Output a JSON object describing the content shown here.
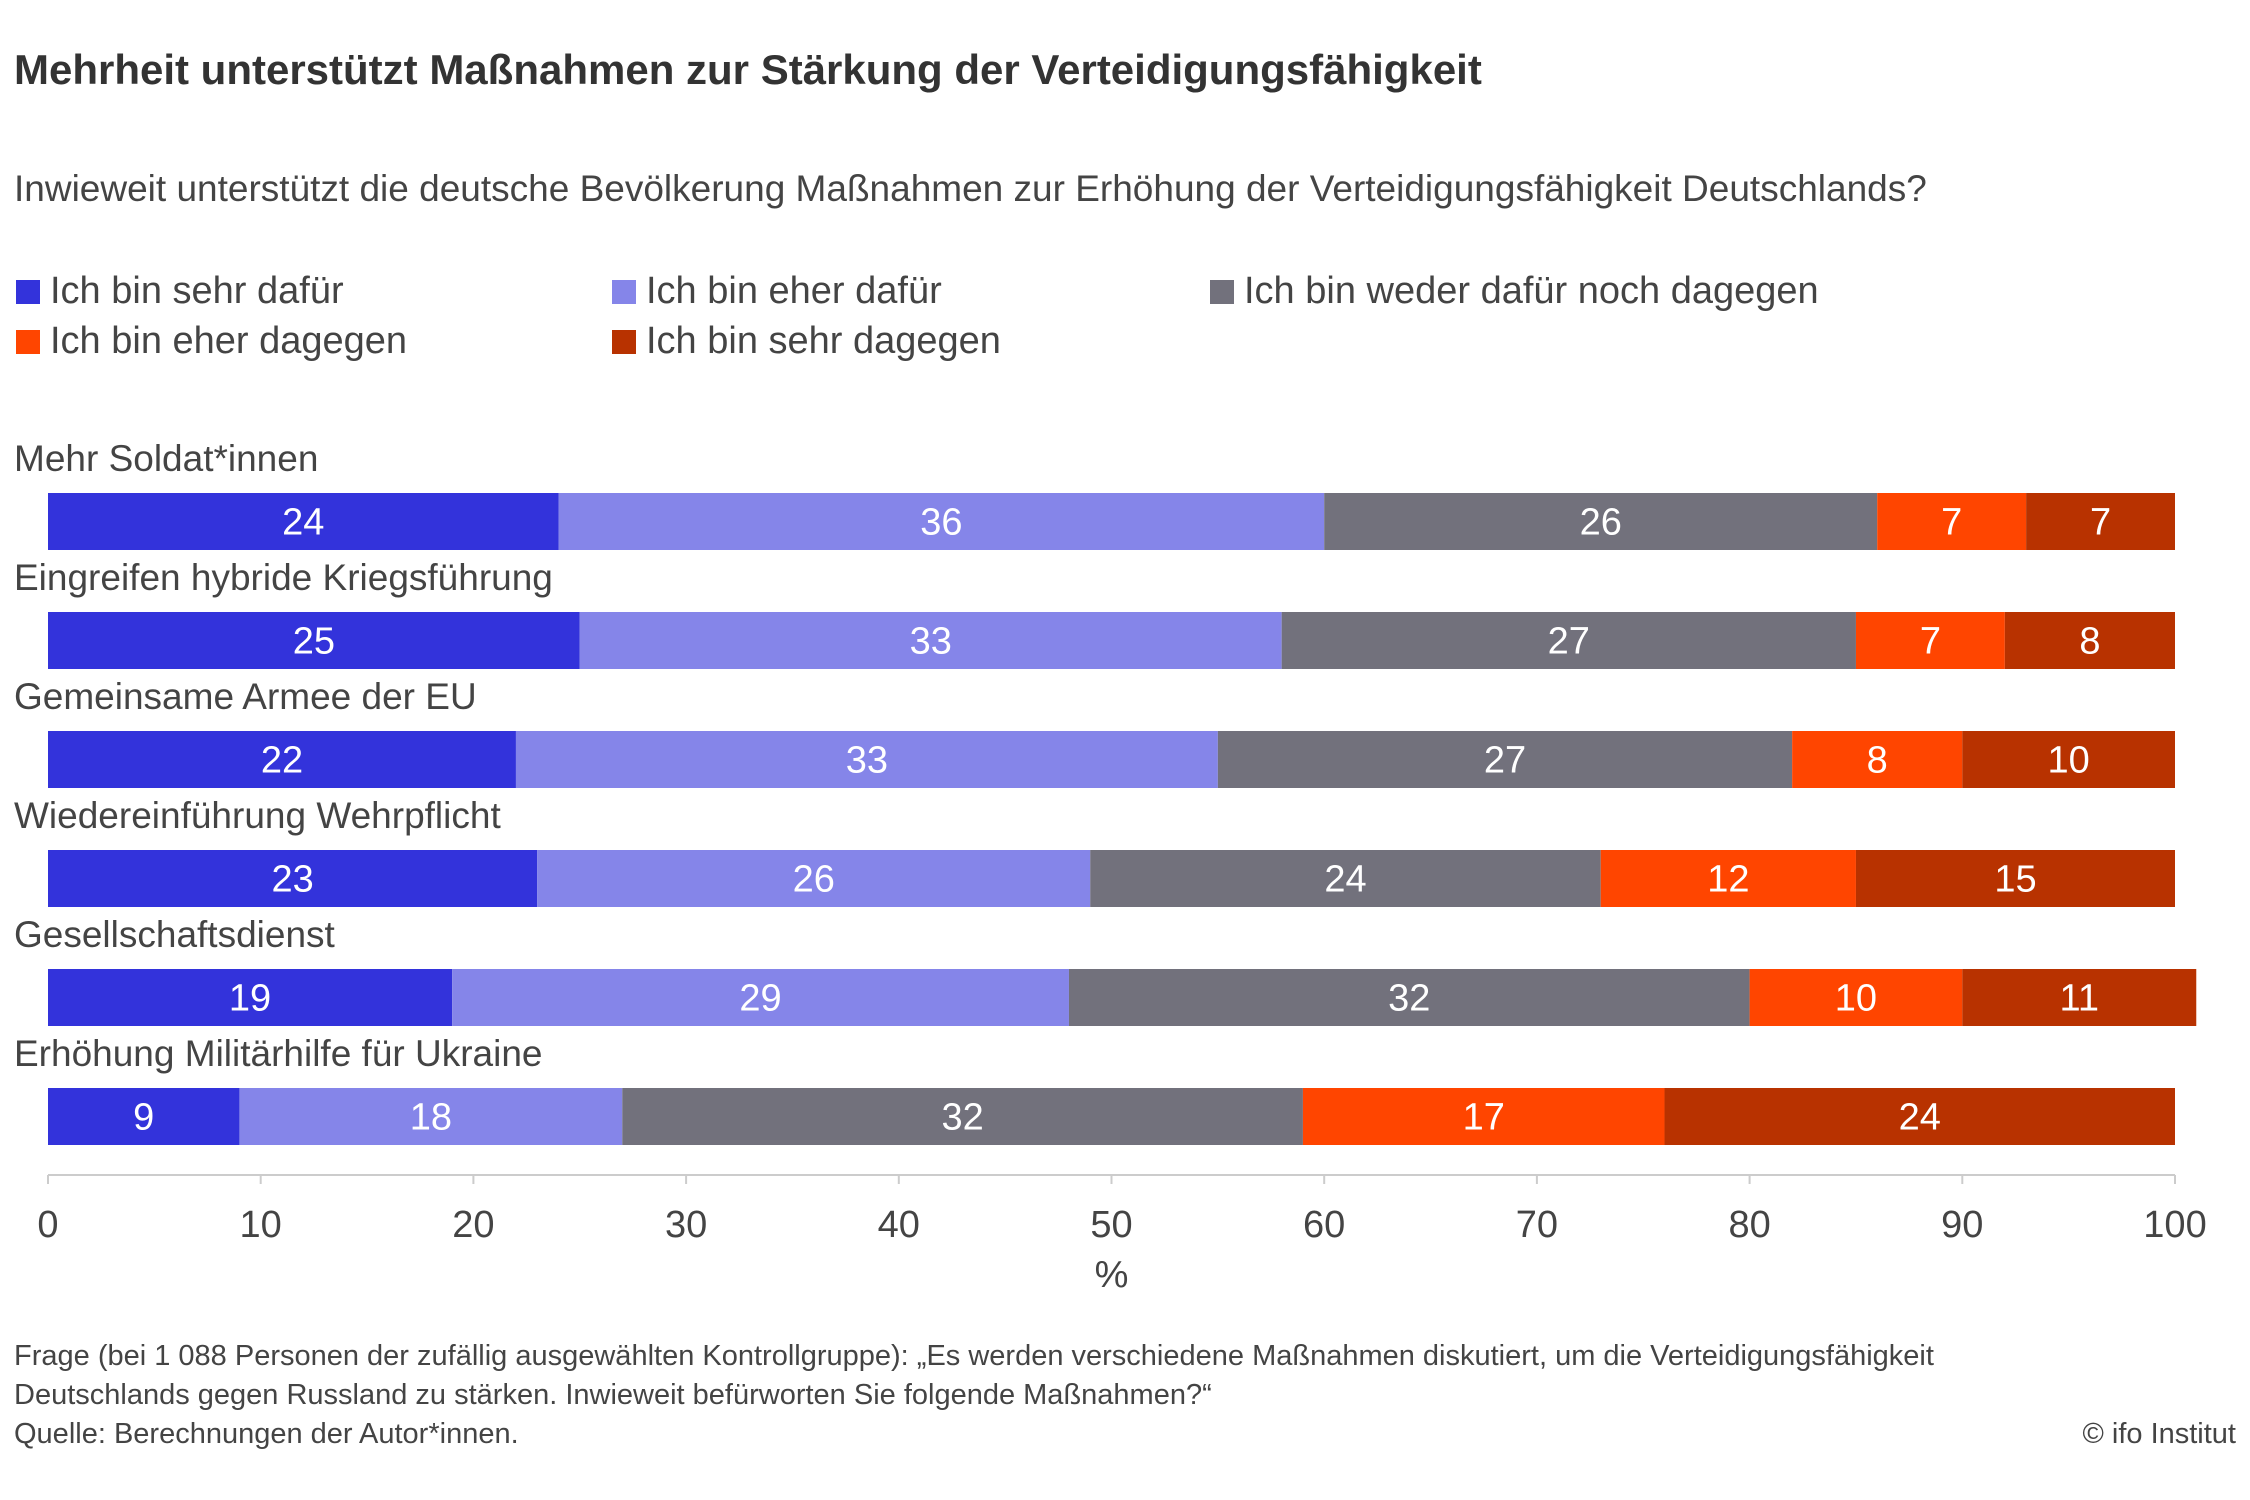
{
  "title": "Mehrheit unterstützt Maßnahmen zur Stärkung der Verteidigungsfähigkeit",
  "subtitle": "Inwieweit unterstützt die deutsche Bevölkerung Maßnahmen zur Erhöhung der Verteidigungsfähigkeit Deutschlands?",
  "footer": {
    "line1": "Frage (bei 1 088 Personen der zufällig ausgewählten Kontrollgruppe): „Es werden verschiedene Maßnahmen diskutiert, um die Verteidigungsfähigkeit",
    "line2": "Deutschlands gegen Russland zu stärken. Inwieweit befürworten Sie folgende Maßnahmen?“",
    "line3": "Quelle: Berechnungen der Autor*innen.",
    "credit": "© ifo Institut"
  },
  "chart_data": {
    "type": "bar",
    "orientation": "horizontal-stacked",
    "xlabel": "%",
    "xlim": [
      0,
      100
    ],
    "xticks": [
      0,
      10,
      20,
      30,
      40,
      50,
      60,
      70,
      80,
      90,
      100
    ],
    "grid": false,
    "legend_placement": "top-left",
    "categories": [
      "Mehr Soldat*innen",
      "Eingreifen hybride Kriegsführung",
      "Gemeinsame Armee der EU",
      "Wiedereinführung Wehrpflicht",
      "Gesellschaftsdienst",
      "Erhöhung Militärhilfe für Ukraine"
    ],
    "series": [
      {
        "name": "Ich bin sehr dafür",
        "color": "#3333db",
        "values": [
          24,
          25,
          22,
          23,
          19,
          9
        ]
      },
      {
        "name": "Ich bin eher dafür",
        "color": "#8585e9",
        "values": [
          36,
          33,
          33,
          26,
          29,
          18
        ]
      },
      {
        "name": "Ich bin weder dafür noch dagegen",
        "color": "#72717c",
        "values": [
          26,
          27,
          27,
          24,
          32,
          32
        ]
      },
      {
        "name": "Ich bin eher dagegen",
        "color": "#ff4500",
        "values": [
          7,
          7,
          8,
          12,
          10,
          17
        ]
      },
      {
        "name": "Ich bin sehr dagegen",
        "color": "#b83200",
        "values": [
          7,
          8,
          10,
          15,
          11,
          24
        ]
      }
    ]
  }
}
